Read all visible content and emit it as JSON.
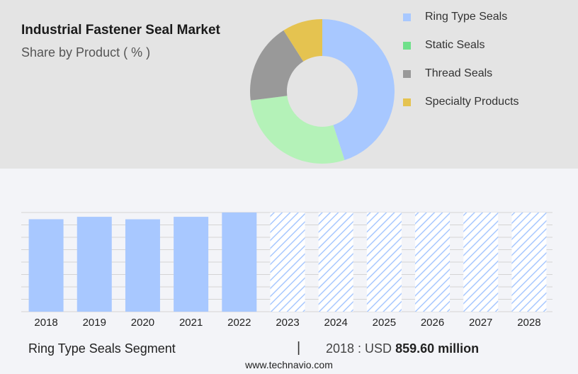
{
  "header": {
    "title": "Industrial Fastener Seal Market",
    "subtitle": "Share by Product ( % )"
  },
  "legend": {
    "items": [
      {
        "label": "Ring Type Seals",
        "color": "#a8c8ff"
      },
      {
        "label": "Static Seals",
        "color": "#6fe08a"
      },
      {
        "label": "Thread Seals",
        "color": "#999999"
      },
      {
        "label": "Specialty Products",
        "color": "#e5c350"
      }
    ]
  },
  "chart_data": [
    {
      "type": "pie",
      "categories": [
        "Ring Type Seals",
        "Static Seals",
        "Thread Seals",
        "Specialty Products"
      ],
      "values": [
        45,
        28,
        18,
        9
      ],
      "colors": [
        "#a8c8ff",
        "#b4f2b8",
        "#999999",
        "#e5c350"
      ],
      "donut": true
    },
    {
      "type": "bar",
      "categories": [
        "2018",
        "2019",
        "2020",
        "2021",
        "2022",
        "2023",
        "2024",
        "2025",
        "2026",
        "2027",
        "2028"
      ],
      "values": [
        859.6,
        882,
        859,
        882,
        922,
        null,
        null,
        null,
        null,
        null,
        null
      ],
      "forecast": [
        "2023",
        "2024",
        "2025",
        "2026",
        "2027",
        "2028"
      ],
      "bar_color": "#a8c8ff",
      "ylim": [
        0,
        922
      ],
      "grid": true
    }
  ],
  "footer": {
    "segment_label": "Ring Type Seals Segment",
    "separator": "|",
    "value_prefix": "2018 : USD",
    "value_amount": "859.60 million"
  },
  "source": "www.technavio.com"
}
